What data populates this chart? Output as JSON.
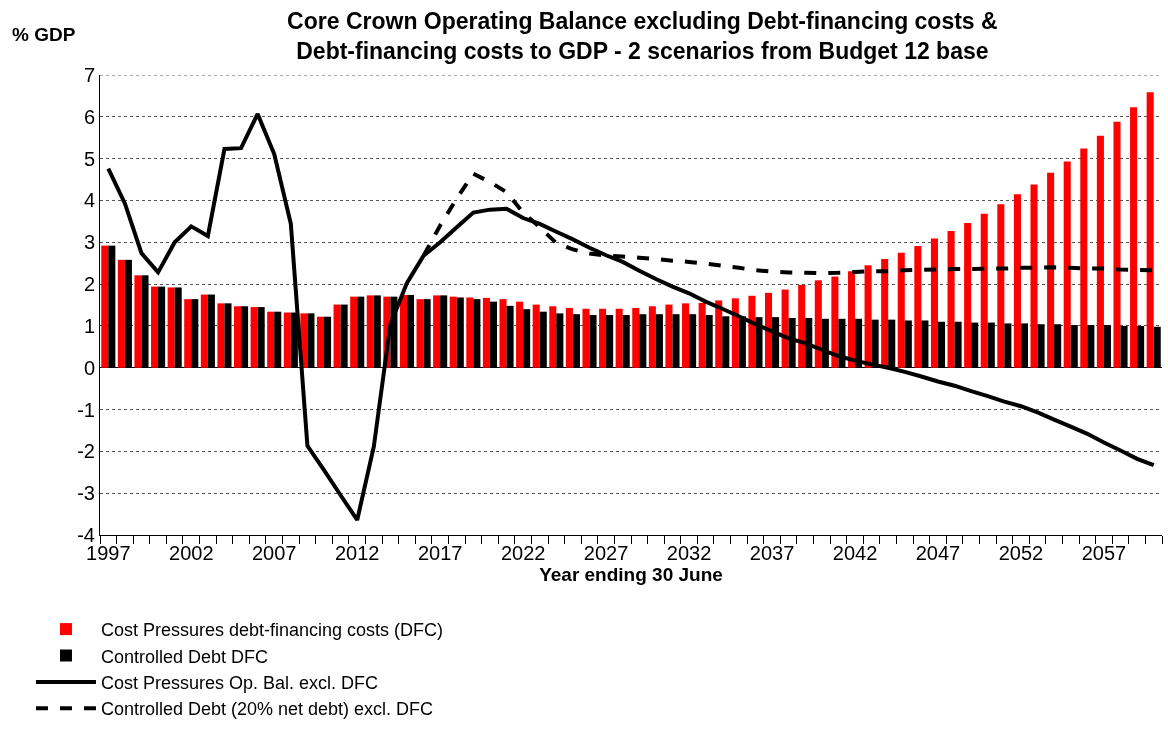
{
  "chart_data": {
    "type": "bar",
    "title": "Core Crown Operating Balance excluding Debt-financing costs &\nDebt-financing costs to GDP - 2 scenarios from Budget 12 base",
    "xlabel": "Year ending 30 June",
    "ylabel": "% GDP",
    "categories": [
      "1997",
      null,
      null,
      null,
      null,
      "2002",
      null,
      null,
      null,
      null,
      "2007",
      null,
      null,
      null,
      null,
      "2012",
      null,
      null,
      null,
      null,
      "2017",
      null,
      null,
      null,
      null,
      "2022",
      null,
      null,
      null,
      null,
      "2027",
      null,
      null,
      null,
      null,
      "2032",
      null,
      null,
      null,
      null,
      "2037",
      null,
      null,
      null,
      null,
      "2042",
      null,
      null,
      null,
      null,
      "2047",
      null,
      null,
      null,
      null,
      "2052",
      null,
      null,
      null,
      null,
      "2057",
      null,
      null,
      null
    ],
    "ylim": [
      -4,
      7
    ],
    "yticks": [
      -4,
      -3,
      -2,
      -1,
      0,
      1,
      2,
      3,
      4,
      5,
      6,
      7
    ],
    "grid": "y",
    "legend": "bottom",
    "marker": "none",
    "series": [
      {
        "name": "Cost Pressures debt-financing costs (DFC)",
        "color": "#ff0000",
        "values": [
          2.92,
          2.58,
          2.21,
          1.94,
          1.92,
          1.64,
          1.75,
          1.54,
          1.47,
          1.45,
          1.34,
          1.32,
          1.3,
          1.22,
          1.51,
          1.7,
          1.73,
          1.7,
          1.74,
          1.64,
          1.73,
          1.7,
          1.68,
          1.67,
          1.64,
          1.58,
          1.51,
          1.47,
          1.43,
          1.41,
          1.41,
          1.41,
          1.43,
          1.47,
          1.51,
          1.54,
          1.55,
          1.61,
          1.66,
          1.72,
          1.79,
          1.87,
          1.98,
          2.09,
          2.18,
          2.31,
          2.45,
          2.6,
          2.75,
          2.91,
          3.09,
          3.27,
          3.46,
          3.68,
          3.91,
          4.15,
          4.38,
          4.66,
          4.93,
          5.24,
          5.55,
          5.88,
          6.23,
          6.59
        ]
      },
      {
        "name": "Controlled Debt DFC",
        "color": "#000000",
        "values": [
          2.92,
          2.58,
          2.21,
          1.94,
          1.92,
          1.64,
          1.75,
          1.54,
          1.47,
          1.45,
          1.34,
          1.32,
          1.3,
          1.22,
          1.51,
          1.7,
          1.73,
          1.7,
          1.74,
          1.64,
          1.73,
          1.68,
          1.64,
          1.58,
          1.48,
          1.4,
          1.34,
          1.3,
          1.28,
          1.26,
          1.26,
          1.26,
          1.28,
          1.28,
          1.28,
          1.28,
          1.26,
          1.23,
          1.23,
          1.21,
          1.21,
          1.19,
          1.19,
          1.17,
          1.17,
          1.17,
          1.15,
          1.15,
          1.13,
          1.13,
          1.1,
          1.1,
          1.08,
          1.08,
          1.06,
          1.06,
          1.04,
          1.04,
          1.02,
          1.02,
          1.02,
          1.0,
          1.0,
          0.98
        ]
      },
      {
        "name": "Cost Pressures Op. Bal. excl. DFC",
        "type": "line",
        "line_style": "solid",
        "color": "#000000",
        "values": [
          4.76,
          3.93,
          2.74,
          2.28,
          3.0,
          3.38,
          3.15,
          5.23,
          5.25,
          6.07,
          5.11,
          3.44,
          -1.87,
          -2.45,
          -3.05,
          -3.64,
          -1.89,
          1.04,
          2.03,
          2.68,
          3.0,
          3.36,
          3.71,
          3.78,
          3.8,
          3.58,
          3.44,
          3.25,
          3.07,
          2.87,
          2.69,
          2.53,
          2.32,
          2.12,
          1.94,
          1.78,
          1.58,
          1.41,
          1.23,
          1.04,
          0.87,
          0.7,
          0.59,
          0.43,
          0.28,
          0.17,
          0.08,
          0.0,
          -0.1,
          -0.21,
          -0.33,
          -0.43,
          -0.56,
          -0.68,
          -0.81,
          -0.92,
          -1.07,
          -1.24,
          -1.41,
          -1.58,
          -1.79,
          -1.98,
          -2.18,
          -2.33
        ]
      },
      {
        "name": "Controlled Debt (20% net debt) excl. DFC",
        "type": "line",
        "line_style": "dashed",
        "color": "#000000",
        "values": [
          null,
          null,
          null,
          null,
          null,
          null,
          null,
          null,
          null,
          null,
          null,
          null,
          null,
          null,
          null,
          null,
          null,
          null,
          null,
          2.68,
          3.4,
          4.05,
          4.64,
          4.44,
          4.2,
          3.71,
          3.36,
          2.98,
          2.83,
          2.73,
          2.68,
          2.66,
          2.63,
          2.6,
          2.56,
          2.53,
          2.49,
          2.44,
          2.39,
          2.33,
          2.3,
          2.28,
          2.27,
          2.26,
          2.27,
          2.29,
          2.31,
          2.31,
          2.33,
          2.34,
          2.35,
          2.36,
          2.36,
          2.37,
          2.37,
          2.39,
          2.39,
          2.4,
          2.39,
          2.37,
          2.37,
          2.35,
          2.34,
          2.33
        ]
      }
    ]
  }
}
